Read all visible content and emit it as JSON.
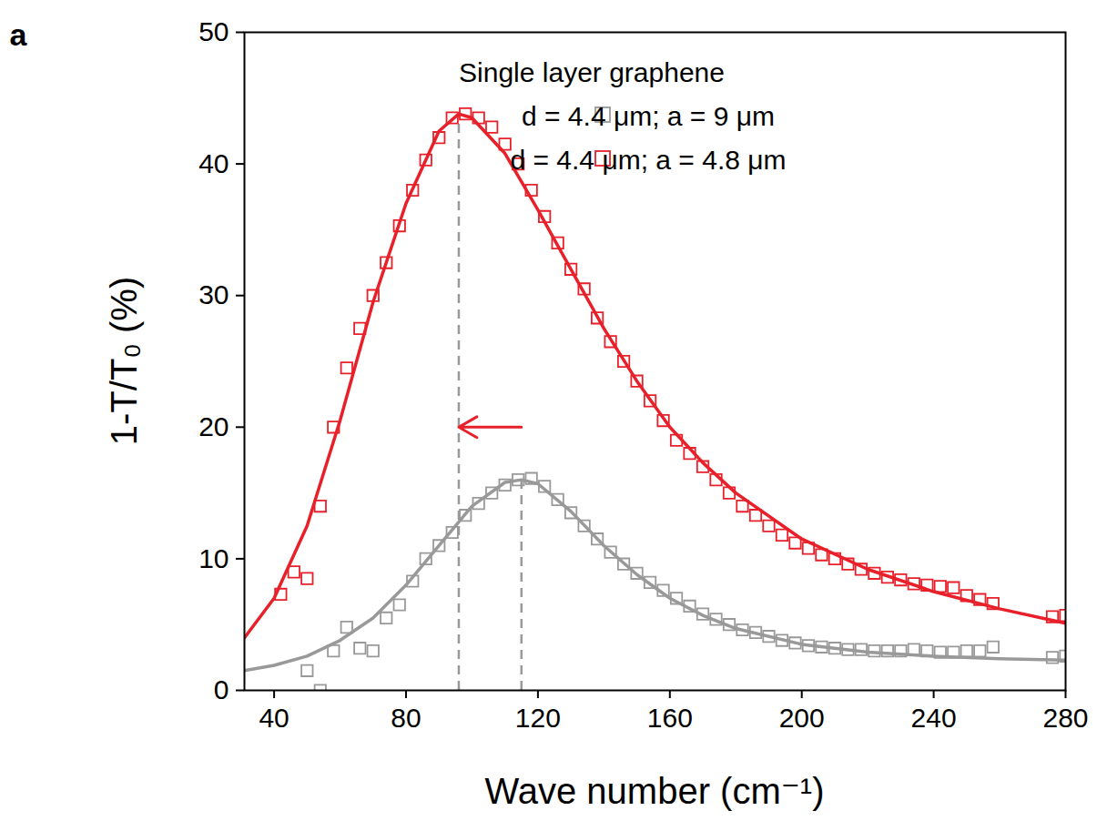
{
  "chart_data": {
    "type": "scatter",
    "panel_label": "a",
    "x_label": "Wave number (cm⁻¹)",
    "y_label": "1-T/T₀ (%)",
    "xlim": [
      31,
      280
    ],
    "ylim": [
      0,
      50
    ],
    "xticks": [
      40,
      80,
      120,
      160,
      200,
      240,
      280
    ],
    "yticks": [
      0,
      10,
      20,
      30,
      40,
      50
    ],
    "legend": "top-right",
    "legend_title": "Single layer graphene",
    "series": [
      {
        "name": "d = 4.4 μm; a = 9 μm",
        "type": "scatter",
        "marker": "square",
        "color": "#999999",
        "x": [
          50,
          54,
          58,
          62,
          66,
          70,
          74,
          78,
          82,
          86,
          90,
          94,
          98,
          102,
          106,
          110,
          114,
          118,
          122,
          126,
          130,
          134,
          138,
          142,
          146,
          150,
          154,
          158,
          162,
          166,
          170,
          174,
          178,
          182,
          186,
          190,
          194,
          198,
          202,
          206,
          210,
          214,
          218,
          222,
          226,
          230,
          234,
          238,
          242,
          246,
          250,
          254,
          258,
          276,
          280
        ],
        "values": [
          1.5,
          0,
          3,
          4.8,
          3.2,
          3,
          5.5,
          6.5,
          8.3,
          10,
          11,
          12,
          13.3,
          14.2,
          15,
          15.6,
          16,
          16.1,
          15.5,
          14.5,
          13.5,
          12.5,
          11.5,
          10.5,
          9.6,
          8.9,
          8.2,
          7.6,
          7,
          6.4,
          5.8,
          5.4,
          5,
          4.6,
          4.4,
          4.1,
          3.8,
          3.6,
          3.4,
          3.3,
          3.2,
          3.1,
          3.1,
          3.0,
          3.0,
          3.0,
          3.1,
          3.0,
          2.9,
          2.9,
          3.0,
          3.0,
          3.3,
          2.5,
          2.6
        ]
      },
      {
        "name": "d = 4.4 μm; a = 4.8 μm",
        "type": "scatter",
        "marker": "square",
        "color": "#e8202a",
        "x": [
          42,
          46,
          50,
          54,
          58,
          62,
          66,
          70,
          74,
          78,
          82,
          86,
          90,
          94,
          98,
          102,
          106,
          110,
          114,
          118,
          122,
          126,
          130,
          134,
          138,
          142,
          146,
          150,
          154,
          158,
          162,
          166,
          170,
          174,
          178,
          182,
          186,
          190,
          194,
          198,
          202,
          206,
          210,
          214,
          218,
          222,
          226,
          230,
          234,
          238,
          242,
          246,
          250,
          254,
          258,
          276,
          280
        ],
        "values": [
          7.3,
          9,
          8.5,
          14,
          20,
          24.5,
          27.5,
          30,
          32.5,
          35.3,
          38,
          40.3,
          42,
          43.5,
          43.8,
          43.5,
          42.8,
          41.5,
          40,
          38,
          36,
          34,
          32,
          30.5,
          28.3,
          26.5,
          25,
          23.5,
          22,
          20.5,
          19,
          18,
          17,
          16,
          15,
          14,
          13.3,
          12.5,
          11.8,
          11.2,
          10.8,
          10.3,
          10,
          9.6,
          9.2,
          8.9,
          8.6,
          8.4,
          8.1,
          8,
          7.9,
          7.8,
          7.2,
          6.9,
          6.6,
          5.6,
          5.7
        ]
      },
      {
        "type": "line",
        "line_style": "solid",
        "color": "#999999",
        "x": [
          31,
          40,
          50,
          60,
          70,
          80,
          90,
          100,
          110,
          115,
          120,
          130,
          140,
          150,
          160,
          170,
          180,
          200,
          220,
          240,
          260,
          280
        ],
        "values": [
          1.5,
          1.9,
          2.6,
          3.8,
          5.5,
          8,
          11,
          14,
          15.8,
          16,
          15.7,
          13.6,
          11,
          8.8,
          7,
          5.7,
          4.7,
          3.5,
          2.9,
          2.6,
          2.4,
          2.3
        ]
      },
      {
        "type": "line",
        "line_style": "solid",
        "color": "#e8202a",
        "x": [
          31,
          40,
          50,
          60,
          70,
          80,
          90,
          96,
          100,
          110,
          120,
          130,
          140,
          150,
          160,
          170,
          180,
          200,
          220,
          240,
          260,
          280
        ],
        "values": [
          4,
          7,
          12.5,
          20.5,
          29.5,
          37,
          42.5,
          43.8,
          43.5,
          40.8,
          36.5,
          32,
          27.5,
          23.5,
          20,
          17.3,
          15,
          11.5,
          9.2,
          7.5,
          6.2,
          5.1
        ]
      }
    ],
    "peak_lines": {
      "color": "#999999",
      "line_style": "dashed",
      "x": [
        96,
        115
      ],
      "values": [
        43.8,
        16
      ]
    },
    "arrow": {
      "color": "#e8202a",
      "x_from": 115,
      "x_to": 96,
      "y": 20
    }
  }
}
